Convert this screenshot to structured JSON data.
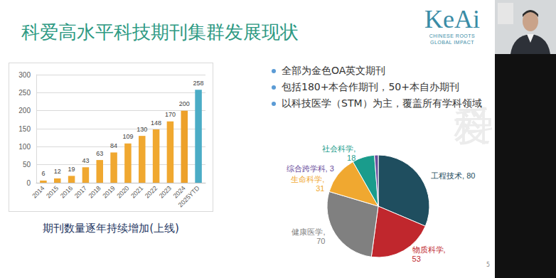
{
  "slide": {
    "title": "科爱高水平科技期刊集群发展现状",
    "logo": {
      "name": "KeAi",
      "tagline": [
        "CHINESE ROOTS",
        "GLOBAL IMPACT"
      ]
    },
    "bullets": [
      "全部为金色OA英文期刊",
      "包括180+本合作期刊，50+本自办期刊",
      "以科技医学（STM）为主，覆盖所有学科领域"
    ],
    "watermark": "科爱",
    "page_number": "5"
  },
  "chart_data": [
    {
      "type": "bar",
      "title": "期刊数量逐年持续增加(上线)",
      "categories": [
        "2014",
        "2015",
        "2016",
        "2017",
        "2018",
        "2019",
        "2020",
        "2021",
        "2022",
        "2023",
        "2024",
        "2025YTD"
      ],
      "values": [
        6,
        12,
        19,
        43,
        63,
        84,
        109,
        130,
        148,
        170,
        200,
        258
      ],
      "colors": [
        "#f0a830",
        "#f0a830",
        "#f0a830",
        "#f0a830",
        "#f0a830",
        "#f0a830",
        "#f0a830",
        "#f0a830",
        "#f0a830",
        "#f0a830",
        "#eda12a",
        "#4bacc6"
      ],
      "ylim": [
        0,
        300
      ],
      "yticks": [
        0,
        50,
        100,
        150,
        200,
        250,
        300
      ],
      "grid": true,
      "data_labels": true
    },
    {
      "type": "pie",
      "categories": [
        "工程技术",
        "物质科学",
        "健康医学",
        "生命科学",
        "社会科学",
        "综合跨学科"
      ],
      "values": [
        80,
        53,
        70,
        31,
        18,
        3
      ],
      "value_labels": [
        "工程技术, 80",
        "物质科学,\n53",
        "健康医学,\n70",
        "生命科学,\n31",
        "社会科学,\n18",
        "综合跨学科, 3"
      ],
      "colors": [
        "#1f4e5f",
        "#c0272d",
        "#808080",
        "#f0a830",
        "#1a9c8c",
        "#6a4c9c"
      ],
      "data_labels": true
    }
  ]
}
